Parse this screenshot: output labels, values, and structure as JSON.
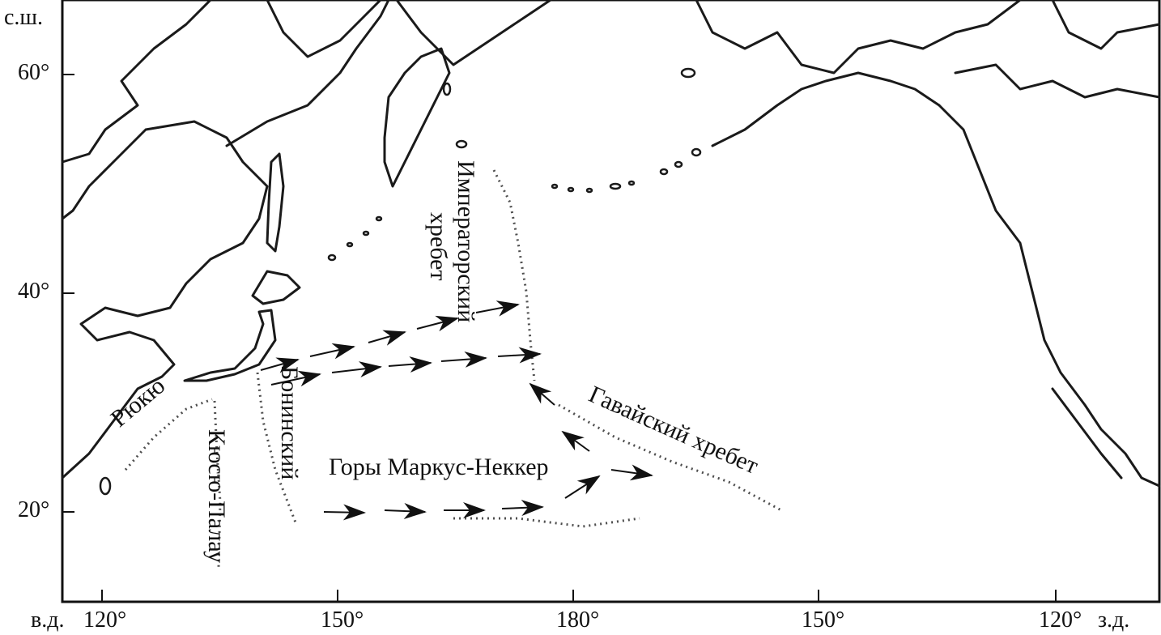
{
  "axes": {
    "lat_unit": "с.ш.",
    "lat_ticks": [
      "60°",
      "40°",
      "20°"
    ],
    "lon_east_unit": "в.д.",
    "lon_west_unit": "з.д.",
    "lon_ticks": [
      "120°",
      "150°",
      "180°",
      "150°",
      "120°"
    ]
  },
  "features": {
    "ryukyu": "Рюкю",
    "kyushu_palau": "Кюсю-Палау",
    "bonin": "Бонинский",
    "emperor_line1": "Императорский",
    "emperor_line2": "хребет",
    "hawaiian": "Гавайский хребет",
    "marcus_necker": "Горы Маркус-Неккер"
  },
  "colors": {
    "ink": "#111111",
    "background": "#ffffff"
  }
}
